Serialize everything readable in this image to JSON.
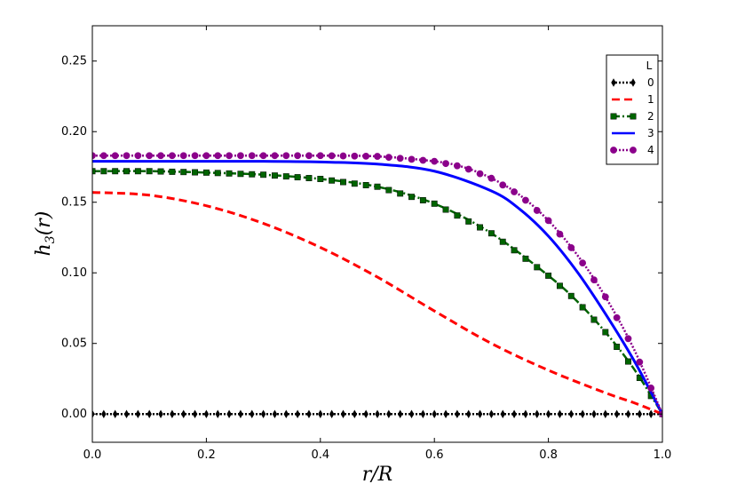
{
  "chart_data": {
    "type": "line",
    "xlabel": "r/R",
    "ylabel": "h3(r)",
    "ylabel_main": "h",
    "ylabel_sub": "3",
    "ylabel_arg": "(r)",
    "xlim": [
      0.0,
      1.0
    ],
    "ylim": [
      -0.02,
      0.275
    ],
    "xticks": [
      "0.0",
      "0.2",
      "0.4",
      "0.6",
      "0.8",
      "1.0"
    ],
    "yticks": [
      "0.00",
      "0.05",
      "0.10",
      "0.15",
      "0.20",
      "0.25"
    ],
    "grid": false,
    "legend_title": "L",
    "legend_position": "top-right",
    "series": [
      {
        "name": "0",
        "color": "#000000",
        "style": "dotted",
        "marker": "diamond",
        "x": [
          0.0,
          0.2,
          0.4,
          0.6,
          0.8,
          1.0
        ],
        "y": [
          0.0,
          0.0,
          0.0,
          0.0,
          0.0,
          0.0
        ]
      },
      {
        "name": "1",
        "color": "#ff0000",
        "style": "dashed",
        "marker": "none",
        "x": [
          0.0,
          0.1,
          0.2,
          0.3,
          0.4,
          0.5,
          0.6,
          0.7,
          0.8,
          0.9,
          0.95,
          1.0
        ],
        "y": [
          0.157,
          0.155,
          0.1475,
          0.135,
          0.118,
          0.097,
          0.073,
          0.05,
          0.031,
          0.015,
          0.008,
          0.0
        ]
      },
      {
        "name": "2",
        "color": "#006400",
        "style": "dashdot",
        "marker": "square",
        "x": [
          0.0,
          0.1,
          0.2,
          0.3,
          0.4,
          0.5,
          0.6,
          0.7,
          0.8,
          0.85,
          0.9,
          0.95,
          1.0
        ],
        "y": [
          0.172,
          0.172,
          0.171,
          0.1695,
          0.1665,
          0.161,
          0.149,
          0.128,
          0.098,
          0.08,
          0.058,
          0.032,
          0.0
        ]
      },
      {
        "name": "3",
        "color": "#0000ff",
        "style": "solid",
        "marker": "none",
        "x": [
          0.0,
          0.1,
          0.2,
          0.3,
          0.4,
          0.5,
          0.6,
          0.7,
          0.75,
          0.8,
          0.85,
          0.9,
          0.95,
          1.0
        ],
        "y": [
          0.179,
          0.179,
          0.179,
          0.179,
          0.1785,
          0.177,
          0.172,
          0.158,
          0.145,
          0.126,
          0.101,
          0.071,
          0.038,
          0.0
        ]
      },
      {
        "name": "4",
        "color": "#8b008b",
        "style": "dotted",
        "marker": "circle",
        "x": [
          0.0,
          0.1,
          0.2,
          0.3,
          0.4,
          0.5,
          0.6,
          0.65,
          0.7,
          0.75,
          0.8,
          0.85,
          0.9,
          0.95,
          1.0
        ],
        "y": [
          0.183,
          0.183,
          0.183,
          0.183,
          0.183,
          0.1825,
          0.179,
          0.175,
          0.167,
          0.155,
          0.137,
          0.113,
          0.083,
          0.046,
          0.0
        ]
      }
    ]
  }
}
